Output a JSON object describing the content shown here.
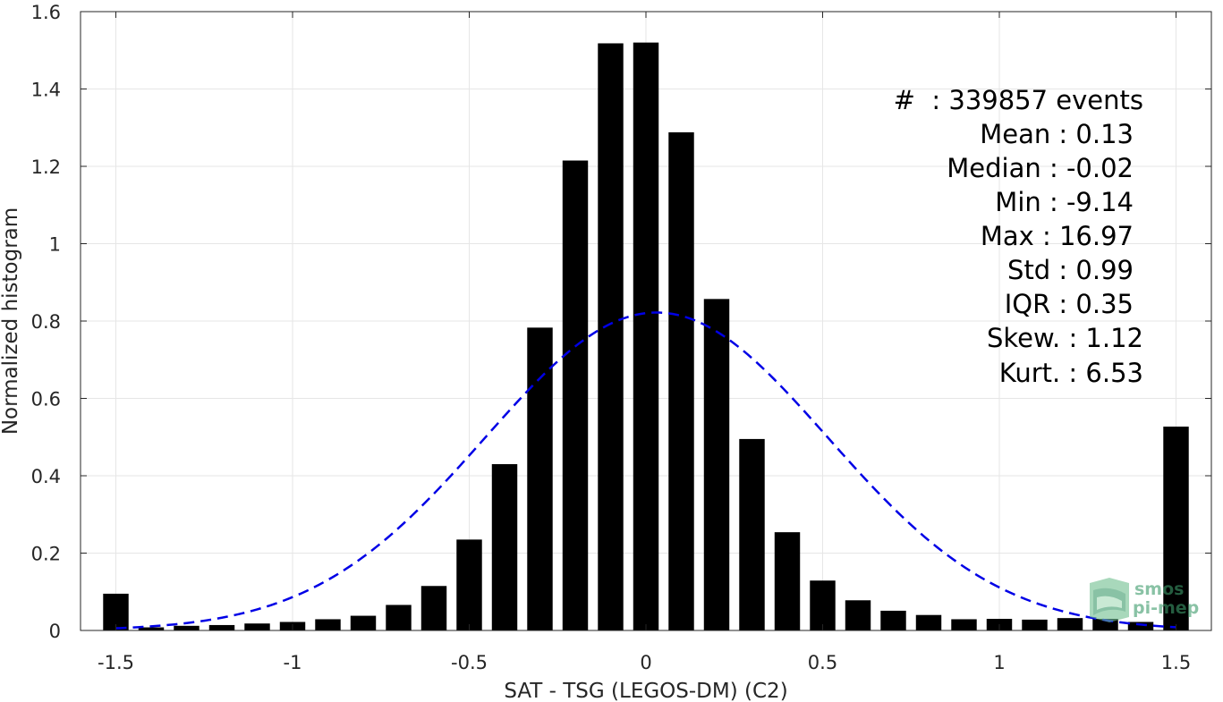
{
  "chart_data": {
    "type": "bar",
    "xlabel": "SAT - TSG (LEGOS-DM) (C2)",
    "ylabel": "Normalized histogram",
    "xlim": [
      -1.6,
      1.6
    ],
    "ylim": [
      0,
      1.6
    ],
    "grid": true,
    "x_ticks": [
      {
        "value": -1.5,
        "label": "-1.5"
      },
      {
        "value": -1,
        "label": "-1"
      },
      {
        "value": -0.5,
        "label": "-0.5"
      },
      {
        "value": 0,
        "label": "0"
      },
      {
        "value": 0.5,
        "label": "0.5"
      },
      {
        "value": 1,
        "label": "1"
      },
      {
        "value": 1.5,
        "label": "1.5"
      }
    ],
    "y_ticks": [
      {
        "value": 0,
        "label": "0"
      },
      {
        "value": 0.2,
        "label": "0.2"
      },
      {
        "value": 0.4,
        "label": "0.4"
      },
      {
        "value": 0.6,
        "label": "0.6"
      },
      {
        "value": 0.8,
        "label": "0.8"
      },
      {
        "value": 1,
        "label": "1"
      },
      {
        "value": 1.2,
        "label": "1.2"
      },
      {
        "value": 1.4,
        "label": "1.4"
      },
      {
        "value": 1.6,
        "label": "1.6"
      }
    ],
    "bars": {
      "color": "#000000",
      "bin_width": 0.1,
      "x": [
        -1.5,
        -1.4,
        -1.3,
        -1.2,
        -1.1,
        -1.0,
        -0.9,
        -0.8,
        -0.7,
        -0.6,
        -0.5,
        -0.4,
        -0.3,
        -0.2,
        -0.1,
        0.0,
        0.1,
        0.2,
        0.3,
        0.4,
        0.5,
        0.6,
        0.7,
        0.8,
        0.9,
        1.0,
        1.1,
        1.2,
        1.3,
        1.4,
        1.5
      ],
      "values": [
        0.095,
        0.008,
        0.012,
        0.014,
        0.018,
        0.022,
        0.029,
        0.038,
        0.066,
        0.115,
        0.235,
        0.43,
        0.783,
        1.215,
        1.518,
        1.52,
        1.288,
        0.857,
        0.495,
        0.254,
        0.129,
        0.078,
        0.051,
        0.04,
        0.029,
        0.03,
        0.028,
        0.032,
        0.03,
        0.022,
        0.527
      ]
    },
    "fit": {
      "type": "normal",
      "mean": 0.03,
      "std": 0.485,
      "peak": 0.822,
      "x_range": [
        -1.5,
        1.5
      ],
      "color": "#0000e6",
      "style": "dashed"
    },
    "stats": [
      {
        "label": "#  ",
        "value": "339857 events"
      },
      {
        "label": "Mean",
        "value": "0.13"
      },
      {
        "label": "Median",
        "value": "-0.02"
      },
      {
        "label": "Min",
        "value": "-9.14"
      },
      {
        "label": "Max",
        "value": "16.97"
      },
      {
        "label": "Std",
        "value": "0.99"
      },
      {
        "label": "IQR",
        "value": "0.35"
      },
      {
        "label": "Skew.",
        "value": "1.12"
      },
      {
        "label": "Kurt.",
        "value": "6.53"
      }
    ]
  },
  "stats_text": {
    "count": "#  : 339857 events",
    "mean": "Mean : 0.13",
    "median": "Median : -0.02",
    "min": "Min : -9.14",
    "max": "Max : 16.97",
    "std": "Std : 0.99",
    "iqr": "IQR : 0.35",
    "skew": "Skew. : 1.12",
    "kurt": "Kurt. : 6.53"
  },
  "logo": {
    "line1": "smos",
    "line2": "pi-mep",
    "color": "#3c9a6a"
  }
}
